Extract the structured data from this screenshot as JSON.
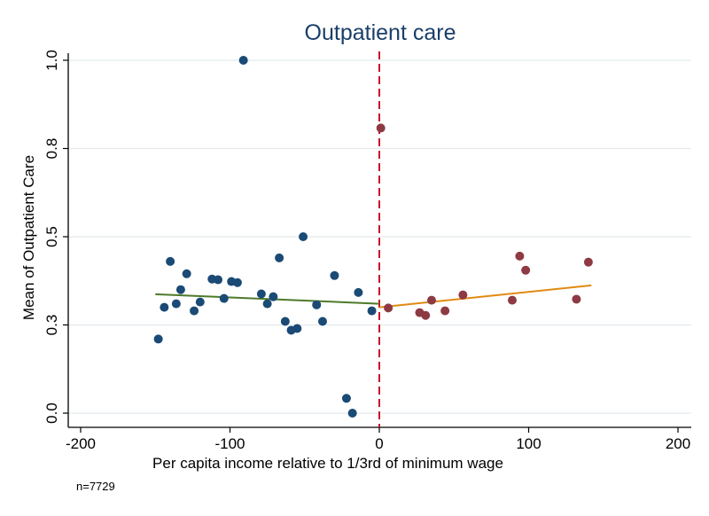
{
  "chart_data": {
    "type": "scatter",
    "title": "Outpatient care",
    "xlabel": "Per capita income relative to 1/3rd of minimum wage",
    "ylabel": "Mean of Outpatient Care",
    "note": "n=7729",
    "xlim": [
      -200,
      200
    ],
    "ylim": [
      0,
      1
    ],
    "xticks": [
      -200,
      -100,
      0,
      100,
      200
    ],
    "xtick_labels": [
      "-200",
      "-100",
      "0",
      "100",
      "200"
    ],
    "yticks": [
      0,
      0.25,
      0.5,
      0.75,
      1
    ],
    "ytick_labels": [
      "0.0",
      "0.3",
      "0.5",
      "0.8",
      "1.0"
    ],
    "grid": true,
    "cutoff": 0,
    "colors": {
      "left_points": "#1a4a75",
      "right_points": "#8e3a43",
      "left_fit": "#4e7a2a",
      "right_fit": "#e08a12",
      "cutoff_line": "#c8102e",
      "title": "#1a3f6a",
      "grid": "#e3eaee"
    },
    "series": [
      {
        "side": "left",
        "points": [
          {
            "x": -148,
            "y": 0.21
          },
          {
            "x": -144,
            "y": 0.3
          },
          {
            "x": -140,
            "y": 0.43
          },
          {
            "x": -136,
            "y": 0.31
          },
          {
            "x": -133,
            "y": 0.35
          },
          {
            "x": -129,
            "y": 0.395
          },
          {
            "x": -124,
            "y": 0.29
          },
          {
            "x": -120,
            "y": 0.315
          },
          {
            "x": -112,
            "y": 0.38
          },
          {
            "x": -108,
            "y": 0.378
          },
          {
            "x": -104,
            "y": 0.325
          },
          {
            "x": -99,
            "y": 0.373
          },
          {
            "x": -95,
            "y": 0.37
          },
          {
            "x": -91,
            "y": 1.0
          },
          {
            "x": -79,
            "y": 0.338
          },
          {
            "x": -75,
            "y": 0.31
          },
          {
            "x": -71,
            "y": 0.33
          },
          {
            "x": -67,
            "y": 0.44
          },
          {
            "x": -63,
            "y": 0.26
          },
          {
            "x": -59,
            "y": 0.235
          },
          {
            "x": -55,
            "y": 0.24
          },
          {
            "x": -51,
            "y": 0.5
          },
          {
            "x": -42,
            "y": 0.307
          },
          {
            "x": -38,
            "y": 0.26
          },
          {
            "x": -30,
            "y": 0.39
          },
          {
            "x": -22,
            "y": 0.042
          },
          {
            "x": -18,
            "y": 0.0
          },
          {
            "x": -14,
            "y": 0.342
          },
          {
            "x": -5,
            "y": 0.29
          }
        ],
        "fit": [
          {
            "x": -150,
            "y": 0.337
          },
          {
            "x": 0,
            "y": 0.31
          }
        ]
      },
      {
        "side": "right",
        "points": [
          {
            "x": 1,
            "y": 0.808
          },
          {
            "x": 6,
            "y": 0.298
          },
          {
            "x": 27,
            "y": 0.285
          },
          {
            "x": 31,
            "y": 0.277
          },
          {
            "x": 35,
            "y": 0.32
          },
          {
            "x": 44,
            "y": 0.29
          },
          {
            "x": 56,
            "y": 0.335
          },
          {
            "x": 89,
            "y": 0.32
          },
          {
            "x": 94,
            "y": 0.445
          },
          {
            "x": 98,
            "y": 0.405
          },
          {
            "x": 132,
            "y": 0.323
          },
          {
            "x": 140,
            "y": 0.428
          }
        ],
        "fit": [
          {
            "x": 0,
            "y": 0.3
          },
          {
            "x": 142,
            "y": 0.362
          }
        ]
      }
    ]
  }
}
